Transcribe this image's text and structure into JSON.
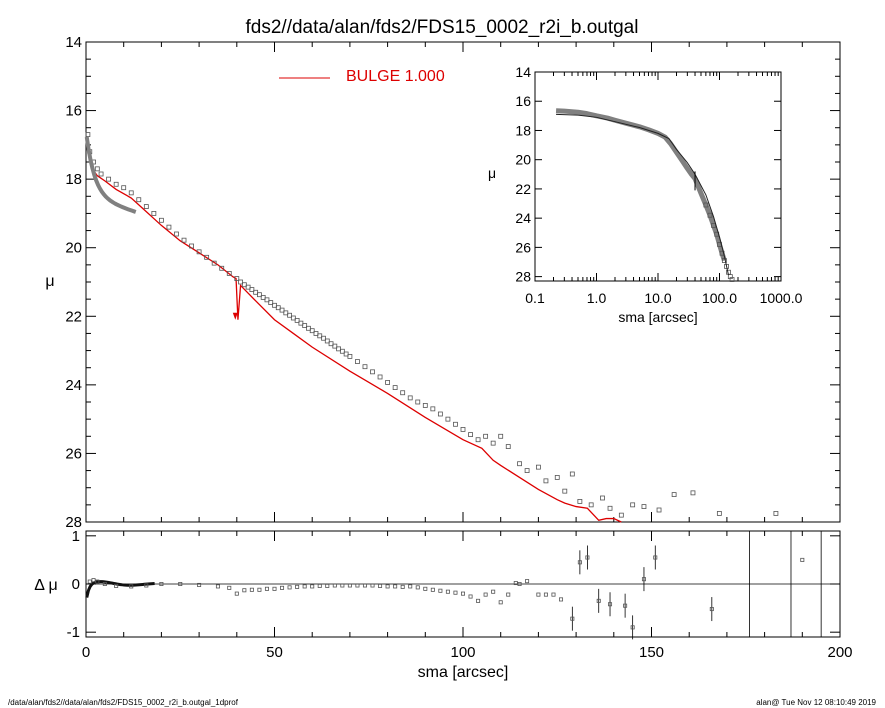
{
  "title": "fds2//data/alan/fds2/FDS15_0002_r2i_b.outgal",
  "footer_left": "/data/alan/fds2//data/alan/fds2/FDS15_0002_r2i_b.outgal_1dprof",
  "footer_right": "alan@  Tue Nov 12 08:10:49 2019",
  "colors": {
    "model": "#dd0000",
    "data": "#808080",
    "axes": "#000000"
  },
  "chart_data": [
    {
      "type": "scatter",
      "panel": "main",
      "xlabel": "sma [arcsec]",
      "ylabel": "μ",
      "xlim": [
        0,
        200
      ],
      "ylim": [
        28,
        14
      ],
      "xticks": [
        "0",
        "50",
        "100",
        "150",
        "200"
      ],
      "yticks": [
        "14",
        "16",
        "18",
        "20",
        "22",
        "24",
        "26",
        "28"
      ],
      "legend": {
        "label": "BULGE  1.000",
        "placement": "top-left"
      },
      "series": [
        {
          "name": "BULGE  1.000",
          "kind": "line",
          "x": [
            0.2,
            0.5,
            1,
            2,
            3,
            5,
            8,
            12,
            15,
            20,
            25,
            30,
            35,
            39,
            39.8,
            40.3,
            41,
            45,
            50,
            55,
            60,
            70,
            80,
            90,
            100,
            105,
            108,
            110,
            115,
            120,
            125,
            127,
            130,
            133,
            136,
            138,
            140,
            142
          ],
          "y": [
            17.0,
            17.2,
            17.45,
            17.75,
            17.9,
            18.05,
            18.3,
            18.55,
            18.85,
            19.35,
            19.8,
            20.15,
            20.5,
            20.85,
            20.9,
            22.1,
            21.1,
            21.55,
            22.1,
            22.5,
            22.9,
            23.6,
            24.25,
            24.95,
            25.6,
            25.85,
            26.2,
            26.35,
            26.7,
            27.05,
            27.35,
            27.45,
            27.55,
            27.6,
            27.95,
            27.9,
            27.9,
            28.0
          ]
        },
        {
          "name": "",
          "kind": "markers",
          "x": [
            0.5,
            1,
            2,
            3,
            4,
            6,
            8,
            10,
            12,
            14,
            16,
            18,
            20,
            22,
            24,
            26,
            28,
            30,
            32,
            34,
            36,
            38,
            40,
            41,
            42,
            43,
            44,
            45,
            46,
            47,
            48,
            49,
            50,
            51,
            52,
            53,
            54,
            55,
            56,
            57,
            58,
            59,
            60,
            61,
            62,
            63,
            64,
            65,
            66,
            67,
            68,
            69,
            70,
            72,
            74,
            76,
            78,
            80,
            82,
            84,
            86,
            88,
            90,
            92,
            94,
            96,
            98,
            100,
            102,
            104,
            106,
            108,
            110,
            112,
            115,
            117,
            120,
            122,
            125,
            127,
            129,
            131,
            134,
            137,
            139,
            142,
            145,
            148,
            152,
            156,
            161,
            168,
            183
          ],
          "y": [
            16.7,
            17.2,
            17.5,
            17.7,
            17.85,
            18.0,
            18.15,
            18.25,
            18.4,
            18.6,
            18.8,
            19.0,
            19.2,
            19.4,
            19.6,
            19.78,
            19.95,
            20.12,
            20.28,
            20.45,
            20.6,
            20.75,
            20.9,
            21.0,
            21.08,
            21.15,
            21.22,
            21.3,
            21.37,
            21.45,
            21.52,
            21.6,
            21.68,
            21.75,
            21.82,
            21.9,
            21.97,
            22.05,
            22.12,
            22.2,
            22.27,
            22.35,
            22.42,
            22.5,
            22.57,
            22.64,
            22.72,
            22.8,
            22.87,
            22.95,
            23.02,
            23.1,
            23.17,
            23.32,
            23.47,
            23.62,
            23.77,
            23.93,
            24.08,
            24.23,
            24.38,
            24.5,
            24.6,
            24.7,
            24.85,
            25.0,
            25.15,
            25.3,
            25.45,
            25.6,
            25.5,
            25.7,
            25.5,
            25.8,
            26.3,
            26.5,
            26.4,
            26.8,
            26.7,
            27.1,
            26.6,
            27.4,
            27.5,
            27.3,
            27.6,
            27.8,
            27.5,
            27.55,
            27.65,
            27.2,
            27.15,
            27.75,
            27.75
          ]
        }
      ]
    },
    {
      "type": "scatter",
      "panel": "inset",
      "xlabel": "sma [arcsec]",
      "ylabel": "μ",
      "xscale": "log",
      "xlim": [
        0.1,
        1000
      ],
      "ylim": [
        28.3,
        14
      ],
      "xticks": [
        "0.1",
        "1.0",
        "10.0",
        "100.0",
        "1000.0"
      ],
      "yticks": [
        "14",
        "16",
        "18",
        "20",
        "22",
        "24",
        "26",
        "28"
      ],
      "series": [
        {
          "name": "",
          "kind": "line",
          "x": [
            0.22,
            0.5,
            1,
            2,
            5,
            10,
            15,
            20,
            30,
            40,
            60,
            80,
            100,
            120,
            140
          ],
          "y": [
            16.9,
            16.95,
            17.1,
            17.4,
            17.8,
            18.2,
            18.55,
            19.3,
            20.2,
            21.0,
            22.4,
            23.9,
            25.3,
            26.6,
            27.9
          ]
        },
        {
          "name": "",
          "kind": "markers",
          "x": [
            0.22,
            0.3,
            0.5,
            0.7,
            1,
            1.5,
            2,
            3,
            5,
            7,
            10,
            13,
            16,
            20,
            25,
            30,
            35,
            40,
            50,
            60,
            70,
            80,
            90,
            100,
            110,
            120,
            130,
            140,
            150,
            160
          ],
          "y": [
            16.65,
            16.68,
            16.75,
            16.85,
            17.0,
            17.15,
            17.3,
            17.5,
            17.75,
            17.95,
            18.2,
            18.45,
            18.9,
            19.5,
            20.1,
            20.6,
            21.0,
            21.3,
            22.3,
            23.1,
            23.8,
            24.5,
            25.1,
            25.8,
            26.4,
            26.9,
            27.3,
            27.7,
            28.0,
            28.2
          ]
        }
      ]
    },
    {
      "type": "scatter",
      "panel": "residual",
      "xlabel": "sma [arcsec]",
      "ylabel": "Δ μ",
      "xlim": [
        0,
        200
      ],
      "ylim": [
        -1.1,
        1.1
      ],
      "yticks": [
        "1",
        "0",
        "-1"
      ],
      "series": [
        {
          "name": "",
          "kind": "markers",
          "x": [
            1,
            2,
            3,
            5,
            8,
            12,
            16,
            20,
            25,
            30,
            35,
            38,
            40,
            42,
            44,
            46,
            48,
            50,
            52,
            54,
            56,
            58,
            60,
            62,
            64,
            66,
            68,
            70,
            72,
            74,
            76,
            78,
            80,
            82,
            84,
            86,
            88,
            90,
            92,
            94,
            96,
            98,
            100,
            102,
            104,
            106,
            108,
            110,
            112,
            114,
            115,
            117,
            120,
            122,
            124,
            126,
            129,
            131,
            133,
            136,
            139,
            143,
            145,
            148,
            151,
            166,
            190
          ],
          "y": [
            0.05,
            0.08,
            0.05,
            0.0,
            -0.04,
            -0.05,
            -0.03,
            0.0,
            0.0,
            -0.02,
            -0.05,
            -0.08,
            -0.2,
            -0.13,
            -0.12,
            -0.12,
            -0.1,
            -0.1,
            -0.08,
            -0.07,
            -0.06,
            -0.05,
            -0.05,
            -0.04,
            -0.04,
            -0.03,
            -0.03,
            -0.03,
            -0.03,
            -0.03,
            -0.03,
            -0.04,
            -0.05,
            -0.05,
            -0.06,
            -0.05,
            -0.07,
            -0.1,
            -0.12,
            -0.14,
            -0.16,
            -0.18,
            -0.2,
            -0.26,
            -0.35,
            -0.22,
            -0.16,
            -0.38,
            -0.22,
            0.02,
            0.0,
            0.06,
            -0.22,
            -0.22,
            -0.22,
            -0.32,
            -0.72,
            0.45,
            0.55,
            -0.35,
            -0.42,
            -0.45,
            -0.9,
            0.1,
            0.55,
            -0.52,
            0.5
          ]
        }
      ],
      "reference_lines": {
        "y": 0,
        "x": [
          176,
          187,
          195
        ]
      }
    }
  ]
}
